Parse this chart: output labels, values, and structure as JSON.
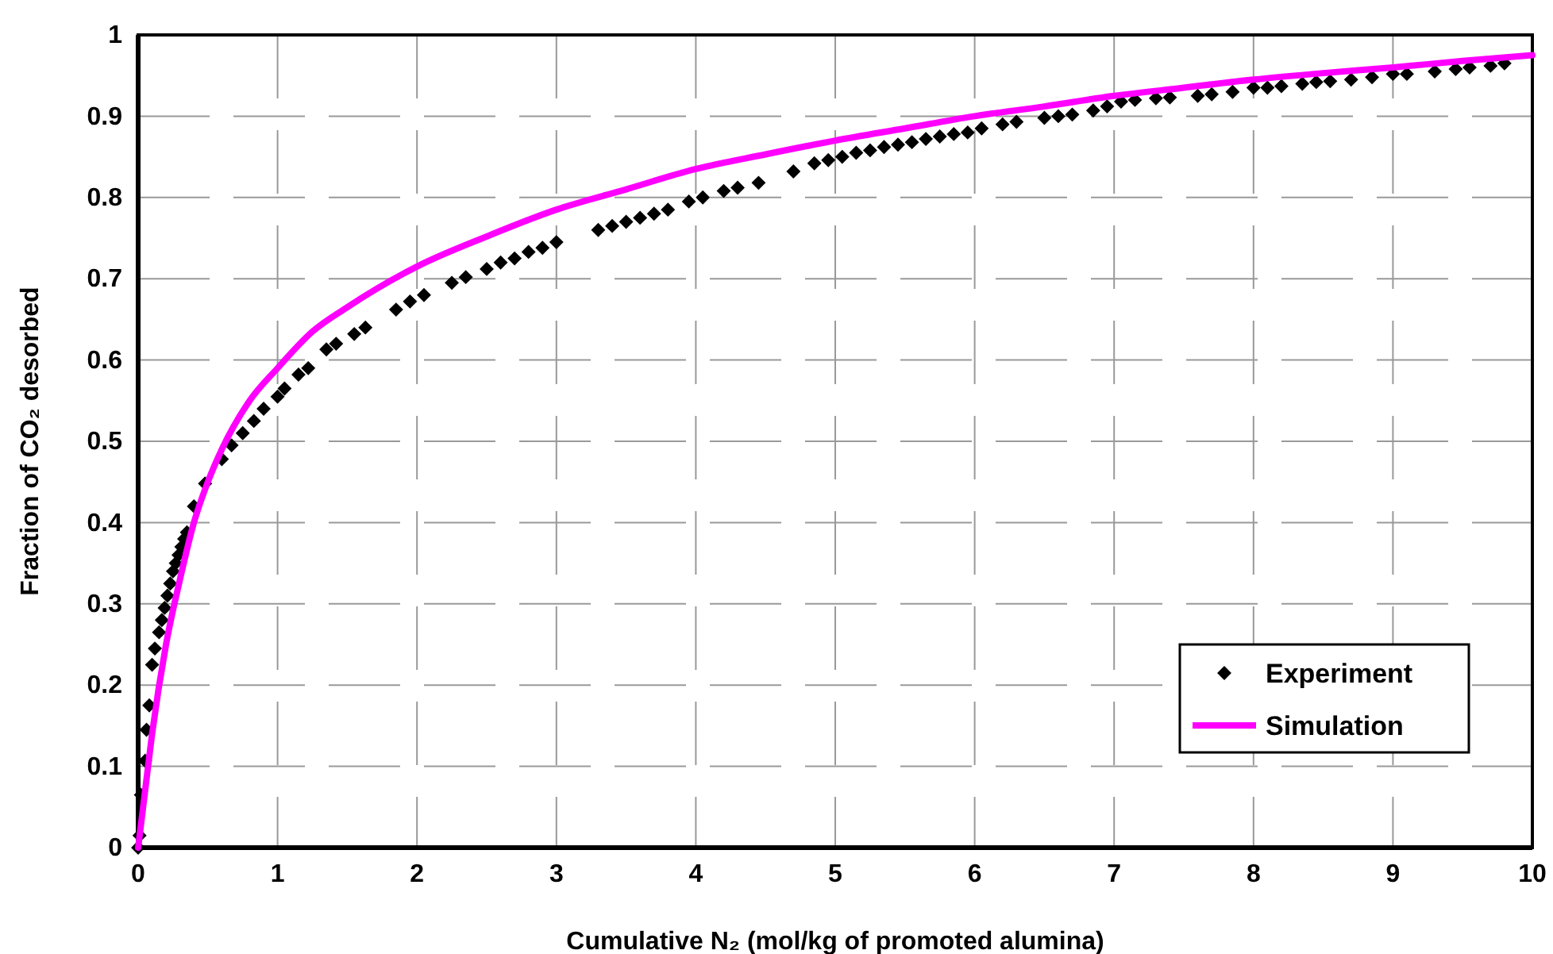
{
  "chart_data": {
    "type": "scatter",
    "xlabel": "Cumulative N₂ (mol/kg of promoted alumina)",
    "ylabel": "Fraction of CO₂ desorbed",
    "xlim": [
      0,
      10
    ],
    "ylim": [
      0,
      1
    ],
    "xticks": [
      0,
      1,
      2,
      3,
      4,
      5,
      6,
      7,
      8,
      9,
      10
    ],
    "yticks": [
      0,
      0.1,
      0.2,
      0.3,
      0.4,
      0.5,
      0.6,
      0.7,
      0.8,
      0.9,
      1
    ],
    "grid": true,
    "legend": "bottom right",
    "series": [
      {
        "name": "Experiment",
        "marker": "diamond",
        "color": "#000000",
        "x": [
          0,
          0.01,
          0.02,
          0.05,
          0.06,
          0.08,
          0.1,
          0.12,
          0.15,
          0.17,
          0.19,
          0.21,
          0.23,
          0.25,
          0.27,
          0.29,
          0.31,
          0.33,
          0.35,
          0.4,
          0.48,
          0.6,
          0.67,
          0.75,
          0.83,
          0.9,
          1.0,
          1.05,
          1.15,
          1.22,
          1.35,
          1.42,
          1.55,
          1.63,
          1.85,
          1.95,
          2.05,
          2.25,
          2.35,
          2.5,
          2.6,
          2.7,
          2.8,
          2.9,
          3.0,
          3.3,
          3.4,
          3.5,
          3.6,
          3.7,
          3.8,
          3.95,
          4.05,
          4.2,
          4.3,
          4.45,
          4.7,
          4.85,
          4.95,
          5.05,
          5.15,
          5.25,
          5.35,
          5.45,
          5.55,
          5.65,
          5.75,
          5.85,
          5.95,
          6.05,
          6.2,
          6.3,
          6.5,
          6.6,
          6.7,
          6.85,
          6.95,
          7.05,
          7.15,
          7.3,
          7.4,
          7.6,
          7.7,
          7.85,
          8.0,
          8.1,
          8.2,
          8.35,
          8.45,
          8.55,
          8.7,
          8.85,
          9.0,
          9.1,
          9.3,
          9.45,
          9.55,
          9.7,
          9.8
        ],
        "values": [
          0,
          0.015,
          0.065,
          0.107,
          0.145,
          0.175,
          0.225,
          0.245,
          0.265,
          0.28,
          0.295,
          0.31,
          0.325,
          0.34,
          0.35,
          0.36,
          0.37,
          0.38,
          0.388,
          0.42,
          0.448,
          0.478,
          0.495,
          0.51,
          0.525,
          0.54,
          0.555,
          0.565,
          0.582,
          0.59,
          0.613,
          0.62,
          0.632,
          0.64,
          0.662,
          0.672,
          0.68,
          0.695,
          0.702,
          0.712,
          0.72,
          0.725,
          0.733,
          0.738,
          0.745,
          0.76,
          0.765,
          0.77,
          0.775,
          0.78,
          0.785,
          0.795,
          0.8,
          0.808,
          0.812,
          0.818,
          0.832,
          0.842,
          0.846,
          0.85,
          0.855,
          0.858,
          0.862,
          0.865,
          0.868,
          0.872,
          0.875,
          0.878,
          0.88,
          0.885,
          0.89,
          0.893,
          0.898,
          0.9,
          0.902,
          0.907,
          0.912,
          0.918,
          0.92,
          0.922,
          0.923,
          0.925,
          0.927,
          0.93,
          0.935,
          0.935,
          0.937,
          0.94,
          0.942,
          0.943,
          0.945,
          0.948,
          0.952,
          0.952,
          0.955,
          0.958,
          0.96,
          0.962,
          0.965
        ]
      },
      {
        "name": "Simulation",
        "type": "line",
        "marker": "none",
        "line_style": "solid",
        "color": "#ff00ff",
        "x": [
          0,
          0.05,
          0.1,
          0.2,
          0.3,
          0.4,
          0.5,
          0.6,
          0.8,
          1.0,
          1.25,
          1.5,
          2.0,
          2.5,
          3.0,
          3.5,
          4.0,
          4.5,
          5.0,
          5.5,
          6.0,
          6.5,
          7.0,
          7.5,
          8.0,
          8.5,
          9.0,
          9.5,
          10
        ],
        "values": [
          0,
          0.07,
          0.14,
          0.25,
          0.33,
          0.4,
          0.45,
          0.49,
          0.55,
          0.59,
          0.635,
          0.665,
          0.715,
          0.752,
          0.785,
          0.81,
          0.835,
          0.853,
          0.87,
          0.885,
          0.9,
          0.912,
          0.925,
          0.935,
          0.945,
          0.953,
          0.96,
          0.968,
          0.975
        ]
      }
    ]
  }
}
